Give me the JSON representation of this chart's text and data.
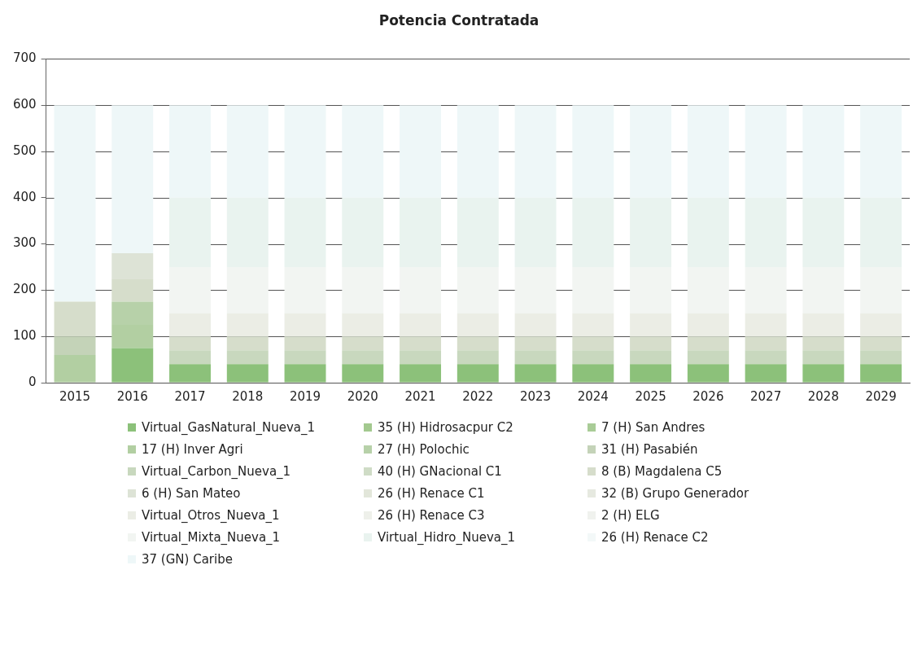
{
  "chart_data": {
    "type": "bar",
    "title": "Potencia Contratada",
    "stacked": true,
    "grid": "y",
    "legend": "bottom",
    "categories": [
      "2015",
      "2016",
      "2017",
      "2018",
      "2019",
      "2020",
      "2021",
      "2022",
      "2023",
      "2024",
      "2025",
      "2026",
      "2027",
      "2028",
      "2029"
    ],
    "ylim": [
      0,
      700
    ],
    "yticks": [
      0,
      100,
      200,
      300,
      400,
      500,
      600,
      700
    ],
    "series": [
      {
        "name": "Virtual_GasNatural_Nueva_1",
        "color": "#8cc17a",
        "values": [
          0,
          75,
          40,
          40,
          40,
          40,
          40,
          40,
          40,
          40,
          40,
          40,
          40,
          40,
          40
        ]
      },
      {
        "name": "35 (H) Hidrosacpur C2",
        "color": "#a3c98f",
        "values": [
          0,
          0,
          0,
          0,
          0,
          0,
          0,
          0,
          0,
          0,
          0,
          0,
          0,
          0,
          0
        ]
      },
      {
        "name": "7 (H) San Andres",
        "color": "#a9cc97",
        "values": [
          0,
          0,
          0,
          0,
          0,
          0,
          0,
          0,
          0,
          0,
          0,
          0,
          0,
          0,
          0
        ]
      },
      {
        "name": "17 (H) Inver Agri",
        "color": "#b2cfa2",
        "values": [
          60,
          50,
          0,
          0,
          0,
          0,
          0,
          0,
          0,
          0,
          0,
          0,
          0,
          0,
          0
        ]
      },
      {
        "name": "27 (H) Polochic",
        "color": "#b7d1a9",
        "values": [
          0,
          50,
          0,
          0,
          0,
          0,
          0,
          0,
          0,
          0,
          0,
          0,
          0,
          0,
          0
        ]
      },
      {
        "name": "31 (H) Pasabién",
        "color": "#c4d3b8",
        "values": [
          40,
          0,
          0,
          0,
          0,
          0,
          0,
          0,
          0,
          0,
          0,
          0,
          0,
          0,
          0
        ]
      },
      {
        "name": "Virtual_Carbon_Nueva_1",
        "color": "#c8d8be",
        "values": [
          0,
          0,
          30,
          30,
          30,
          30,
          30,
          30,
          30,
          30,
          30,
          30,
          30,
          30,
          30
        ]
      },
      {
        "name": "40 (H) GNacional C1",
        "color": "#cfdcc6",
        "values": [
          0,
          0,
          0,
          0,
          0,
          0,
          0,
          0,
          0,
          0,
          0,
          0,
          0,
          0,
          0
        ]
      },
      {
        "name": "8 (B) Magdalena C5",
        "color": "#d6ddcb",
        "values": [
          75,
          50,
          30,
          30,
          30,
          30,
          30,
          30,
          30,
          30,
          30,
          30,
          30,
          30,
          30
        ]
      },
      {
        "name": "6 (H) San Mateo",
        "color": "#dde3d6",
        "values": [
          0,
          55,
          0,
          0,
          0,
          0,
          0,
          0,
          0,
          0,
          0,
          0,
          0,
          0,
          0
        ]
      },
      {
        "name": "26 (H) Renace C1",
        "color": "#e2e6da",
        "values": [
          0,
          0,
          0,
          0,
          0,
          0,
          0,
          0,
          0,
          0,
          0,
          0,
          0,
          0,
          0
        ]
      },
      {
        "name": "32 (B) Grupo Generador",
        "color": "#e6e9e0",
        "values": [
          0,
          0,
          0,
          0,
          0,
          0,
          0,
          0,
          0,
          0,
          0,
          0,
          0,
          0,
          0
        ]
      },
      {
        "name": "Virtual_Otros_Nueva_1",
        "color": "#ebede5",
        "values": [
          0,
          0,
          50,
          50,
          50,
          50,
          50,
          50,
          50,
          50,
          50,
          50,
          50,
          50,
          50
        ]
      },
      {
        "name": "26 (H) Renace C3",
        "color": "#eef0ea",
        "values": [
          0,
          0,
          0,
          0,
          0,
          0,
          0,
          0,
          0,
          0,
          0,
          0,
          0,
          0,
          0
        ]
      },
      {
        "name": "2 (H) ELG",
        "color": "#f0f2ee",
        "values": [
          0,
          0,
          0,
          0,
          0,
          0,
          0,
          0,
          0,
          0,
          0,
          0,
          0,
          0,
          0
        ]
      },
      {
        "name": "Virtual_Mixta_Nueva_1",
        "color": "#f2f5f2",
        "values": [
          0,
          0,
          100,
          100,
          100,
          100,
          100,
          100,
          100,
          100,
          100,
          100,
          100,
          100,
          100
        ]
      },
      {
        "name": "Virtual_Hidro_Nueva_1",
        "color": "#e9f3ef",
        "values": [
          0,
          0,
          150,
          150,
          150,
          150,
          150,
          150,
          150,
          150,
          150,
          150,
          150,
          150,
          150
        ]
      },
      {
        "name": "26 (H) Renace C2",
        "color": "#f3f8f8",
        "values": [
          0,
          0,
          0,
          0,
          0,
          0,
          0,
          0,
          0,
          0,
          0,
          0,
          0,
          0,
          0
        ]
      },
      {
        "name": "37 (GN) Caribe",
        "color": "#eef7f8",
        "values": [
          425,
          320,
          200,
          200,
          200,
          200,
          200,
          200,
          200,
          200,
          200,
          200,
          200,
          200,
          200
        ]
      }
    ]
  }
}
